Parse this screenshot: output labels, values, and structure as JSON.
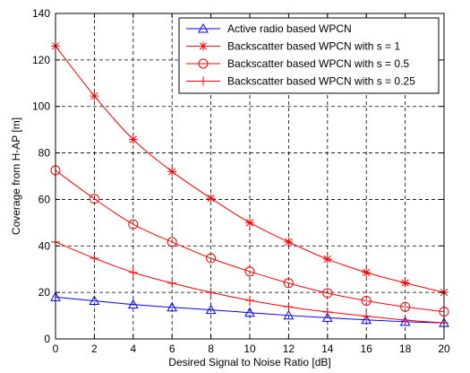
{
  "chart_data": {
    "type": "line",
    "xlabel": "Desired Signal to Noise Ratio [dB]",
    "ylabel": "Coverage from H-AP [m]",
    "xlim": [
      0,
      20
    ],
    "ylim": [
      0,
      140
    ],
    "x_ticks": [
      0,
      2,
      4,
      6,
      8,
      10,
      12,
      14,
      16,
      18,
      20
    ],
    "y_ticks": [
      0,
      20,
      40,
      60,
      80,
      100,
      120,
      140
    ],
    "grid": true,
    "legend_position": "top-right",
    "x": [
      0,
      2,
      4,
      6,
      8,
      10,
      12,
      14,
      16,
      18,
      20
    ],
    "series": [
      {
        "name": "Active radio based WPCN",
        "color": "#0000ff",
        "marker": "triangle",
        "values": [
          18.0,
          16.4,
          14.8,
          13.6,
          12.5,
          11.3,
          10.1,
          9.1,
          8.2,
          7.4,
          6.9
        ]
      },
      {
        "name": "Backscatter based WPCN with s = 1",
        "color": "#ff0000",
        "marker": "asterisk",
        "values": [
          126.0,
          104.5,
          85.8,
          72.0,
          60.5,
          50.0,
          41.7,
          34.3,
          28.6,
          24.1,
          20.0
        ]
      },
      {
        "name": "Backscatter based WPCN with s = 0.5",
        "color": "#ff0000",
        "marker": "circle",
        "values": [
          72.5,
          60.3,
          49.3,
          41.7,
          34.7,
          29.0,
          24.0,
          19.7,
          16.4,
          13.8,
          11.7
        ]
      },
      {
        "name": "Backscatter based WPCN with s = 0.25",
        "color": "#ff0000",
        "marker": "plus",
        "values": [
          41.7,
          34.7,
          28.6,
          24.0,
          20.0,
          16.6,
          13.8,
          11.6,
          9.8,
          8.1,
          6.9
        ]
      }
    ]
  }
}
